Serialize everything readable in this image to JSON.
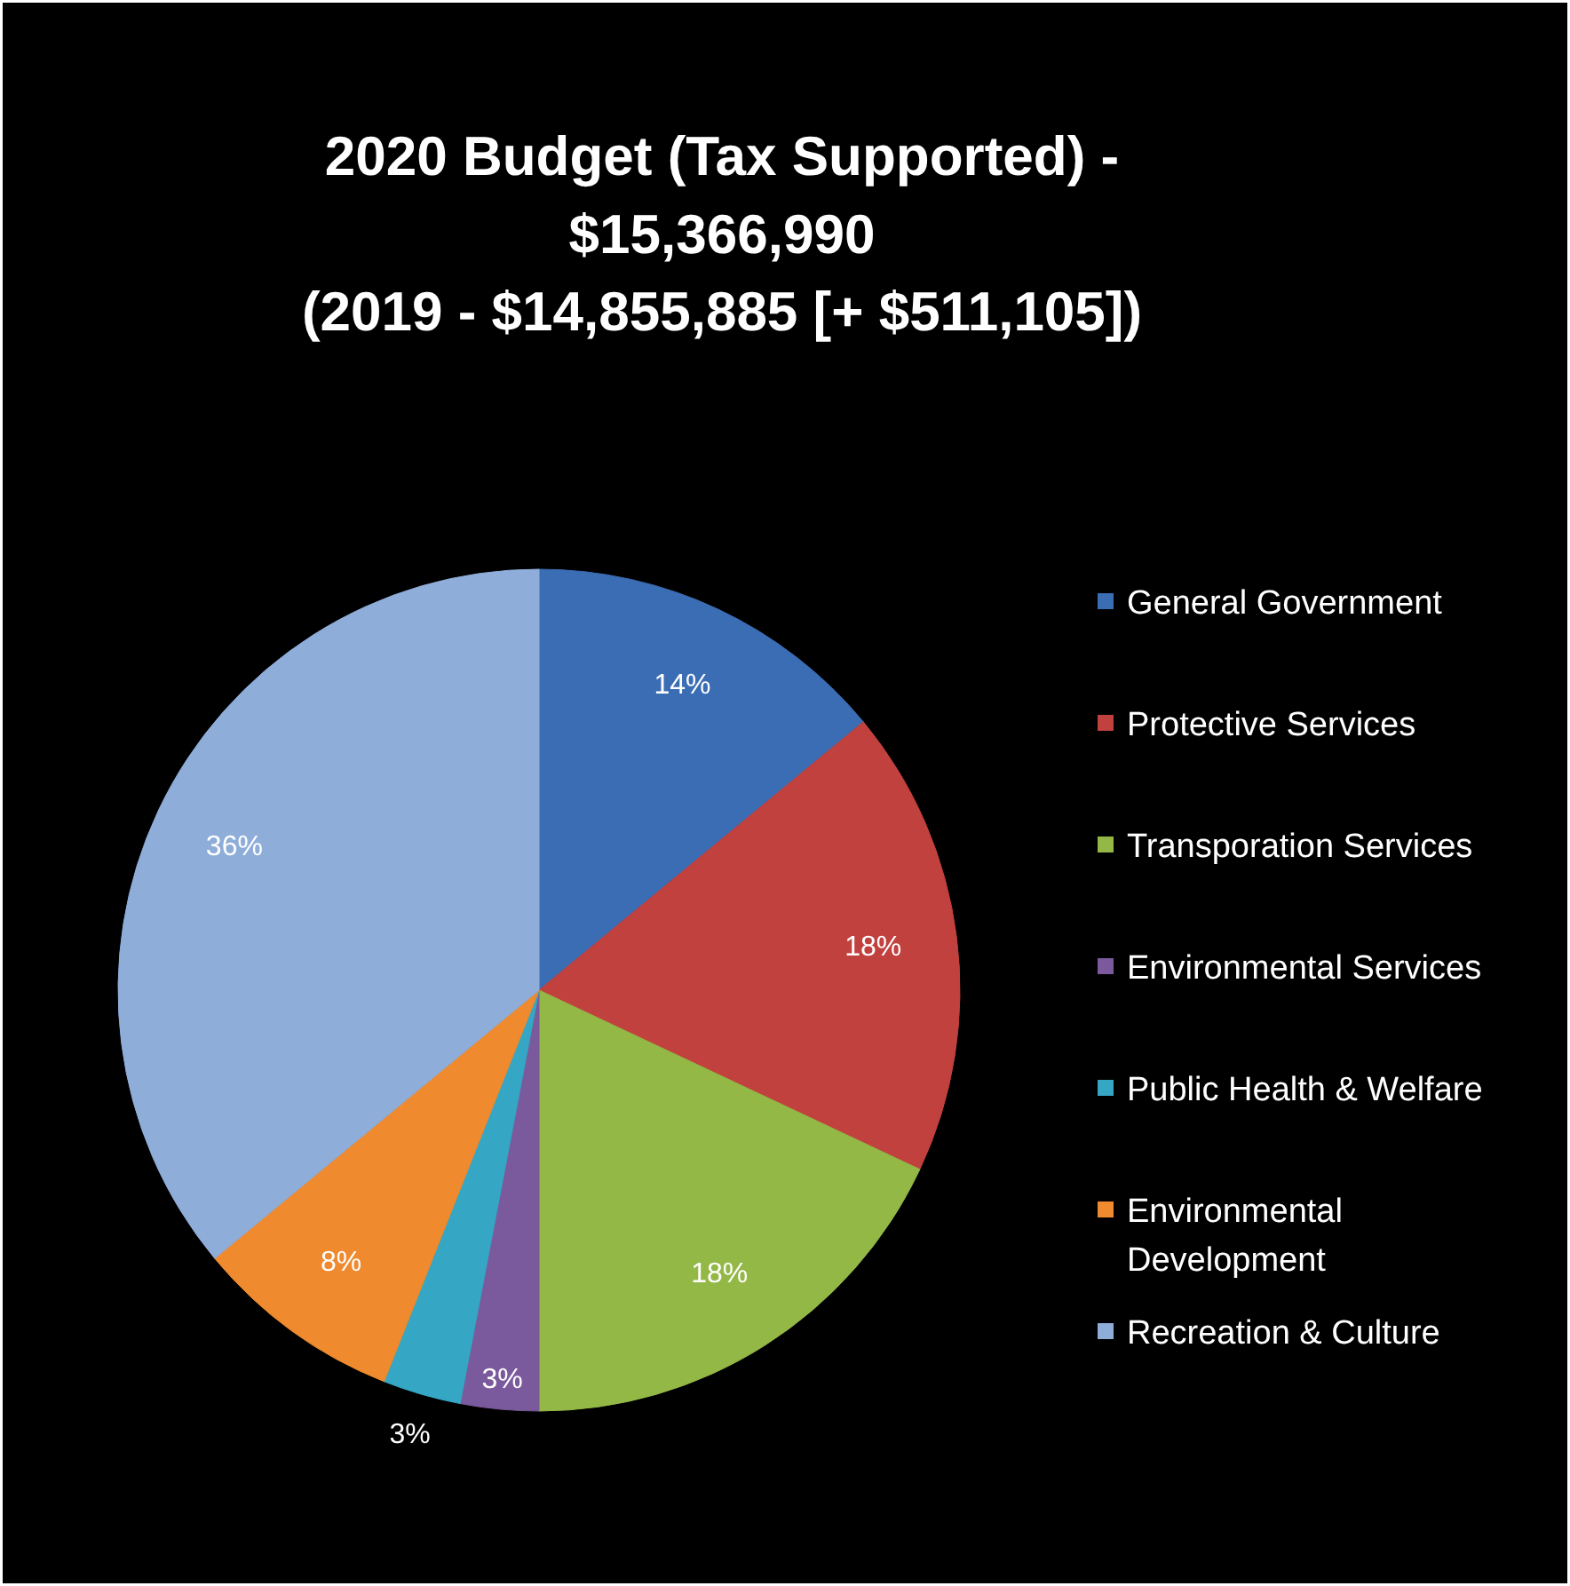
{
  "chart_data": {
    "type": "pie",
    "title": "2020 Budget (Tax Supported) -\n$15,366,990\n(2019 - $14,855,885 [+ $511,105])",
    "categories": [
      "General Government",
      "Protective Services",
      "Transporation Services",
      "Environmental Services",
      "Public Health & Welfare",
      "Environmental Development",
      "Recreation & Culture"
    ],
    "values": [
      14,
      18,
      18,
      3,
      3,
      8,
      36
    ],
    "value_labels": [
      "14%",
      "18%",
      "18%",
      "3%",
      "3%",
      "8%",
      "36%"
    ],
    "colors": [
      "#3b6db4",
      "#c0413e",
      "#93b846",
      "#7a5a9c",
      "#35a7c4",
      "#ef8a2e",
      "#8fadd9"
    ],
    "legend": "right"
  }
}
